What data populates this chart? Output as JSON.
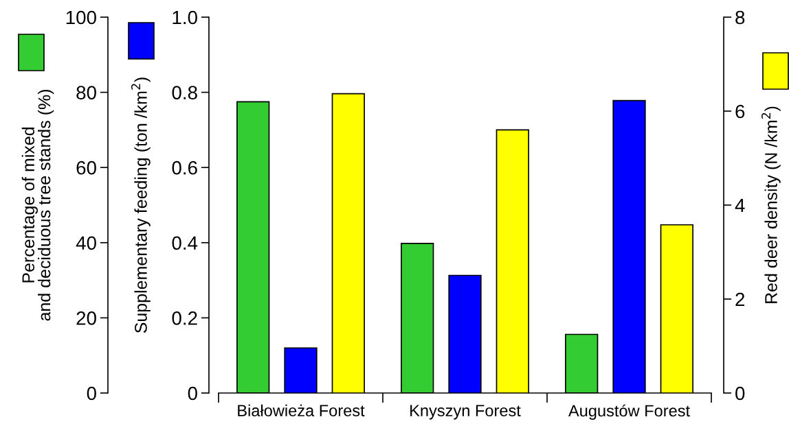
{
  "chart_data": {
    "type": "bar",
    "categories": [
      "Białowieża Forest",
      "Knyszyn Forest",
      "Augustów Forest"
    ],
    "ylabel": "Percentage of mixed\nand deciduous tree stands (%)",
    "y2label": "Supplementary feeding (ton /km$^{2}$)",
    "y3label": "Red deer density (N /km$^{2}$)",
    "ylim": [
      0,
      100
    ],
    "yticks": [
      0,
      20,
      40,
      60,
      80,
      100
    ],
    "y2lim": [
      0,
      1.0
    ],
    "y2ticks": [
      {
        "value": 0,
        "label": "0"
      },
      {
        "value": 0.2,
        "label": "0.2"
      },
      {
        "value": 0.4,
        "label": "0.4"
      },
      {
        "value": 0.6,
        "label": "0.6"
      },
      {
        "value": 0.8,
        "label": "0.8"
      },
      {
        "value": 1.0,
        "label": "1.0"
      }
    ],
    "y3lim": [
      0,
      8
    ],
    "y3ticks": [
      0,
      2,
      4,
      6,
      8
    ],
    "grid": false,
    "series": [
      {
        "color": "#33cc33",
        "axis": "y",
        "values": [
          77.5,
          39.8,
          15.6
        ]
      },
      {
        "color": "#0000ff",
        "axis": "y2",
        "values": [
          0.12,
          0.313,
          0.778
        ]
      },
      {
        "color": "#ffff00",
        "axis": "y3",
        "values": [
          6.37,
          5.6,
          3.58
        ]
      }
    ]
  }
}
